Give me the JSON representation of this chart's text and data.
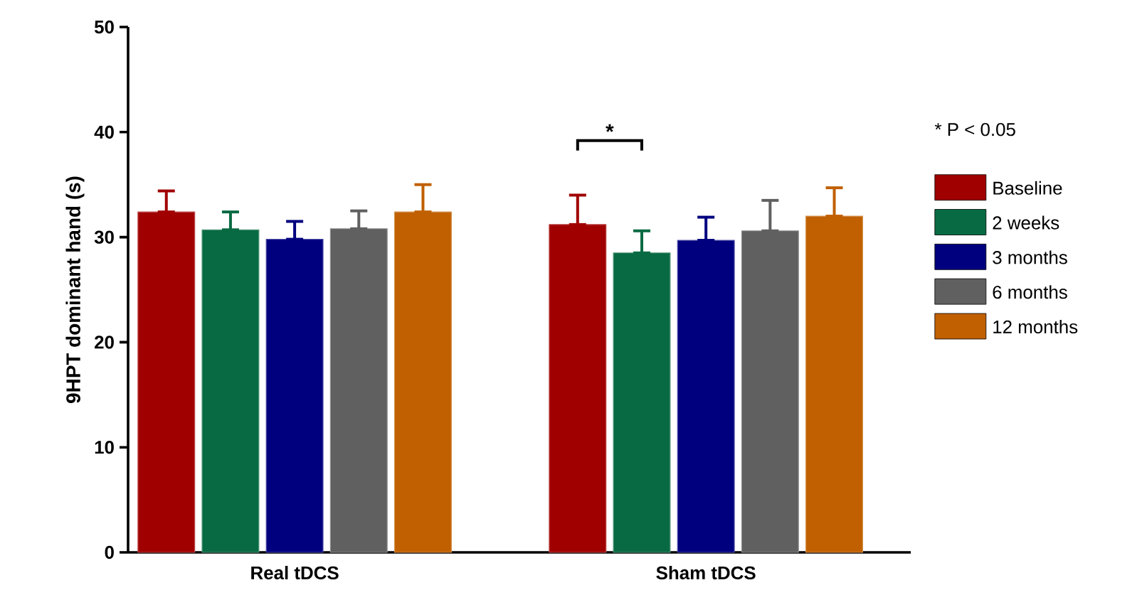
{
  "chart_data": {
    "type": "bar",
    "ylabel": "9HPT dominant hand (s)",
    "categories": [
      "Real tDCS",
      "Sham tDCS"
    ],
    "ylim": [
      0,
      50
    ],
    "yticks": [
      0,
      10,
      20,
      30,
      40,
      50
    ],
    "legend": "right",
    "grid": false,
    "series": [
      {
        "name": "Baseline",
        "color": "#a00000",
        "values": [
          32.4,
          31.2
        ],
        "errors": [
          [
            32.4,
            34.4
          ],
          [
            31.2,
            34.0
          ]
        ]
      },
      {
        "name": "2 weeks",
        "color": "#086a42",
        "values": [
          30.7,
          28.5
        ],
        "errors": [
          [
            30.7,
            32.4
          ],
          [
            28.5,
            30.6
          ]
        ]
      },
      {
        "name": "3 months",
        "color": "#00007f",
        "values": [
          29.8,
          29.7
        ],
        "errors": [
          [
            29.8,
            31.5
          ],
          [
            29.7,
            31.9
          ]
        ]
      },
      {
        "name": "6 months",
        "color": "#606060",
        "values": [
          30.8,
          30.6
        ],
        "errors": [
          [
            30.8,
            32.5
          ],
          [
            30.6,
            33.5
          ]
        ]
      },
      {
        "name": "12 months",
        "color": "#c06000",
        "values": [
          32.4,
          32.0
        ],
        "errors": [
          [
            32.4,
            35.0
          ],
          [
            32.0,
            34.7
          ]
        ]
      }
    ],
    "annotations": [
      "*",
      "* P < 0.05"
    ]
  }
}
